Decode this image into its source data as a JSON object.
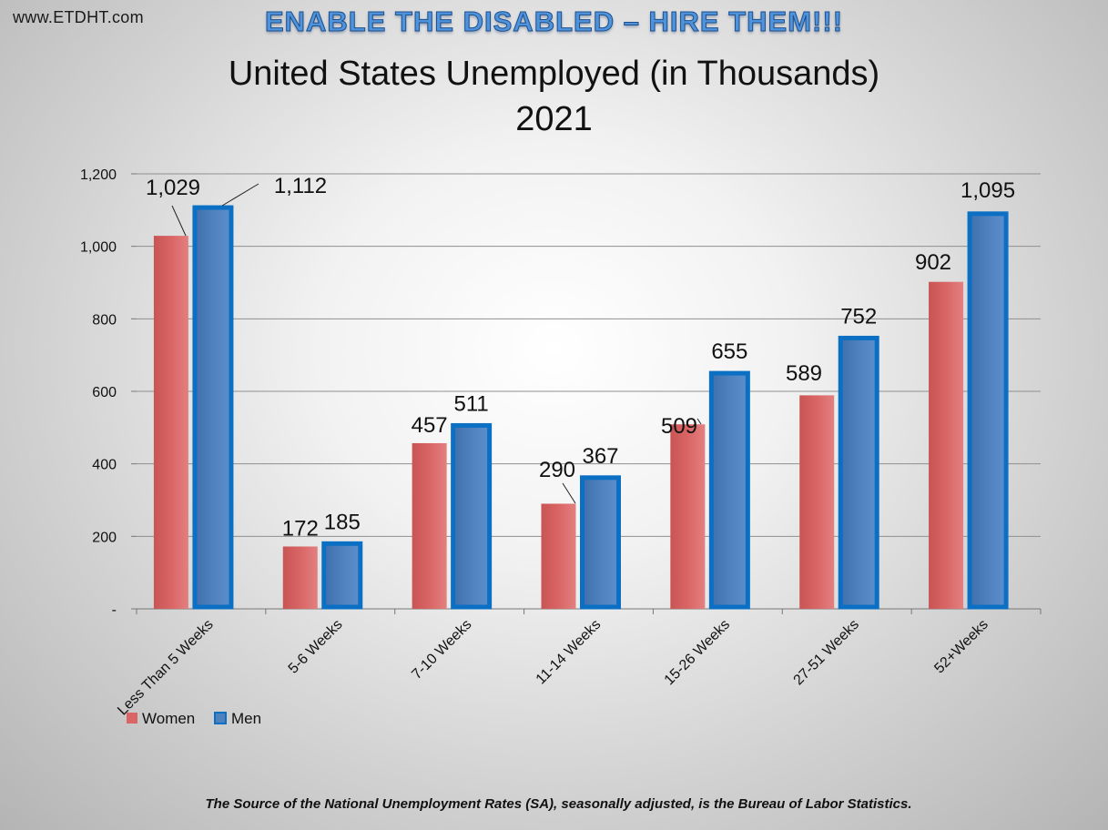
{
  "site_label": "www.ETDHT.com",
  "banner": "ENABLE THE DISABLED – HIRE THEM!!!",
  "colors": {
    "women_fill": "#d96565",
    "men_fill": "#4f81bd",
    "men_border": "#0b6fc4"
  },
  "chart_data": {
    "type": "bar",
    "title": "United States Unemployed (in Thousands)",
    "subtitle": "2021",
    "categories": [
      "Less Than 5 Weeks",
      "5-6 Weeks",
      "7-10 Weeks",
      "11-14 Weeks",
      "15-26 Weeks",
      "27-51 Weeks",
      "52+Weeks"
    ],
    "series": [
      {
        "name": "Women",
        "values": [
          1029,
          172,
          457,
          290,
          509,
          589,
          902
        ]
      },
      {
        "name": "Men",
        "values": [
          1112,
          185,
          511,
          367,
          655,
          752,
          1095
        ]
      }
    ],
    "data_labels": {
      "Women": [
        "1,029",
        "172",
        "457",
        "290",
        "509",
        "589",
        "902"
      ],
      "Men": [
        "1,112",
        "185",
        "511",
        "367",
        "655",
        "752",
        "1,095"
      ]
    },
    "ylim": [
      0,
      1200
    ],
    "yticks": [
      0,
      200,
      400,
      600,
      800,
      1000,
      1200
    ],
    "ytick_labels": [
      "-",
      "200",
      "400",
      "600",
      "800",
      "1,000",
      "1,200"
    ],
    "grid": true,
    "legend_position": "bottom-left"
  },
  "footer": "The Source of the National Unemployment Rates (SA), seasonally adjusted, is the Bureau of Labor Statistics."
}
